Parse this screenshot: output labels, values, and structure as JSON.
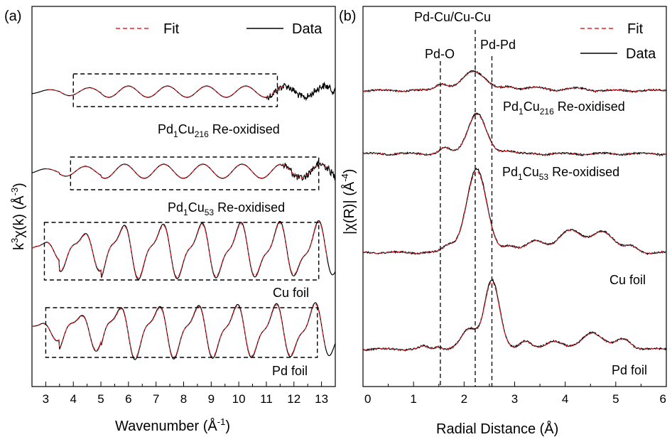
{
  "chart_data": [
    {
      "panel_label": "(a)",
      "type": "line",
      "xlabel": "Wavenumber (Å",
      "xlabel_sup": "-1",
      "xlabel_end": ")",
      "ylabel": "k",
      "ylabel_sup": "3",
      "ylabel_mid": "χ(k) (Å",
      "ylabel_sup2": "-3",
      "ylabel_end": ")",
      "xlim": [
        2.5,
        13.5
      ],
      "xticks": [
        "3",
        "4",
        "5",
        "6",
        "7",
        "8",
        "9",
        "10",
        "11",
        "12",
        "13"
      ],
      "legend": [
        {
          "name": "Fit",
          "style": "dashed",
          "color": "#e8222a"
        },
        {
          "name": "Data",
          "style": "solid",
          "color": "#000000"
        }
      ],
      "legend_placement": "top",
      "series": [
        {
          "name": "Pd1Cu216 Re-oxidised",
          "label_parts": [
            "Pd",
            "1",
            "Cu",
            "216",
            " Re-oxidised"
          ],
          "box_k": [
            4.0,
            11.4
          ],
          "noise_start": 11.0
        },
        {
          "name": "Pd1Cu53 Re-oxidised",
          "label_parts": [
            "Pd",
            "1",
            "Cu",
            "53",
            " Re-oxidised"
          ],
          "box_k": [
            3.9,
            12.9
          ],
          "noise_start": 11.5
        },
        {
          "name": "Cu foil",
          "label_parts": [
            "Cu foil"
          ],
          "box_k": [
            2.95,
            12.9
          ],
          "noise_start": 99
        },
        {
          "name": "Pd foil",
          "label_parts": [
            "Pd foil"
          ],
          "box_k": [
            3.0,
            12.85
          ],
          "noise_start": 99
        }
      ]
    },
    {
      "panel_label": "(b)",
      "type": "line",
      "xlabel": "Radial Distance (Å)",
      "ylabel": "|χ(R)| (Å",
      "ylabel_sup": "-4",
      "ylabel_end": ")",
      "xlim": [
        0,
        6
      ],
      "xticks": [
        "0",
        "1",
        "2",
        "3",
        "4",
        "5",
        "6"
      ],
      "legend": [
        {
          "name": "Fit",
          "style": "dashed",
          "color": "#e8222a"
        },
        {
          "name": "Data",
          "style": "solid",
          "color": "#000000"
        }
      ],
      "legend_placement": "top-right",
      "vlines": [
        {
          "x": 1.53,
          "label": "Pd-O"
        },
        {
          "x": 2.22,
          "label": "Pd-Cu/Cu-Cu"
        },
        {
          "x": 2.55,
          "label": "Pd-Pd"
        }
      ],
      "series": [
        {
          "name": "Pd1Cu216 Re-oxidised",
          "label_parts": [
            "Pd",
            "1",
            "Cu",
            "216",
            " Re-oxidised"
          ]
        },
        {
          "name": "Pd1Cu53 Re-oxidised",
          "label_parts": [
            "Pd",
            "1",
            "Cu",
            "53",
            " Re-oxidised"
          ]
        },
        {
          "name": "Cu foil",
          "label_parts": [
            "Cu foil"
          ]
        },
        {
          "name": "Pd foil",
          "label_parts": [
            "Pd foil"
          ]
        }
      ]
    }
  ]
}
